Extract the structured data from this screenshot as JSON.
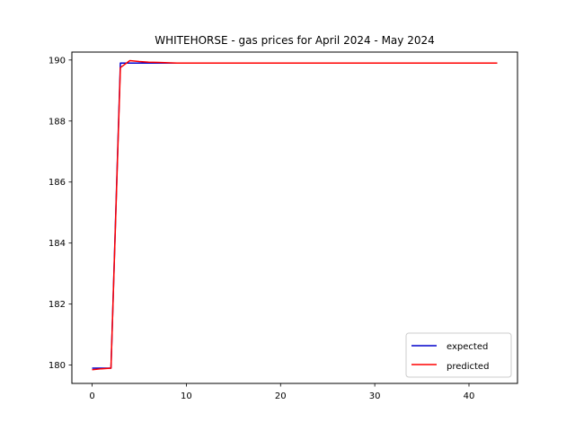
{
  "chart_data": {
    "type": "line",
    "title": "WHITEHORSE - gas prices for April 2024 - May 2024",
    "xlabel": "",
    "ylabel": "",
    "xlim": [
      -2.15,
      45.15
    ],
    "ylim": [
      179.4,
      190.26
    ],
    "xticks": [
      0,
      10,
      20,
      30,
      40
    ],
    "yticks": [
      180,
      182,
      184,
      186,
      188,
      190
    ],
    "grid": false,
    "legend_position": "lower right",
    "series": [
      {
        "name": "expected",
        "color": "#0000cc",
        "x": [
          0,
          1,
          2,
          3,
          4,
          5,
          6,
          7,
          8,
          9,
          10,
          11,
          12,
          13,
          14,
          15,
          16,
          17,
          18,
          19,
          20,
          21,
          22,
          23,
          24,
          25,
          26,
          27,
          28,
          29,
          30,
          31,
          32,
          33,
          34,
          35,
          36,
          37,
          38,
          39,
          40,
          41,
          42,
          43
        ],
        "y": [
          179.9,
          179.9,
          179.9,
          189.9,
          189.9,
          189.9,
          189.9,
          189.9,
          189.9,
          189.9,
          189.9,
          189.9,
          189.9,
          189.9,
          189.9,
          189.9,
          189.9,
          189.9,
          189.9,
          189.9,
          189.9,
          189.9,
          189.9,
          189.9,
          189.9,
          189.9,
          189.9,
          189.9,
          189.9,
          189.9,
          189.9,
          189.9,
          189.9,
          189.9,
          189.9,
          189.9,
          189.9,
          189.9,
          189.9,
          189.9,
          189.9,
          189.9,
          189.9,
          189.9
        ]
      },
      {
        "name": "predicted",
        "color": "#ff0000",
        "x": [
          0,
          1,
          2,
          3,
          4,
          5,
          6,
          7,
          8,
          9,
          10,
          11,
          12,
          13,
          14,
          15,
          16,
          17,
          18,
          19,
          20,
          21,
          22,
          23,
          24,
          25,
          26,
          27,
          28,
          29,
          30,
          31,
          32,
          33,
          34,
          35,
          36,
          37,
          38,
          39,
          40,
          41,
          42,
          43
        ],
        "y": [
          179.85,
          179.88,
          179.9,
          189.75,
          189.98,
          189.95,
          189.93,
          189.92,
          189.91,
          189.9,
          189.9,
          189.9,
          189.9,
          189.9,
          189.9,
          189.9,
          189.9,
          189.9,
          189.9,
          189.9,
          189.9,
          189.9,
          189.9,
          189.9,
          189.9,
          189.9,
          189.9,
          189.9,
          189.9,
          189.9,
          189.9,
          189.9,
          189.9,
          189.9,
          189.9,
          189.9,
          189.9,
          189.9,
          189.9,
          189.9,
          189.9,
          189.9,
          189.9,
          189.9
        ]
      }
    ]
  }
}
